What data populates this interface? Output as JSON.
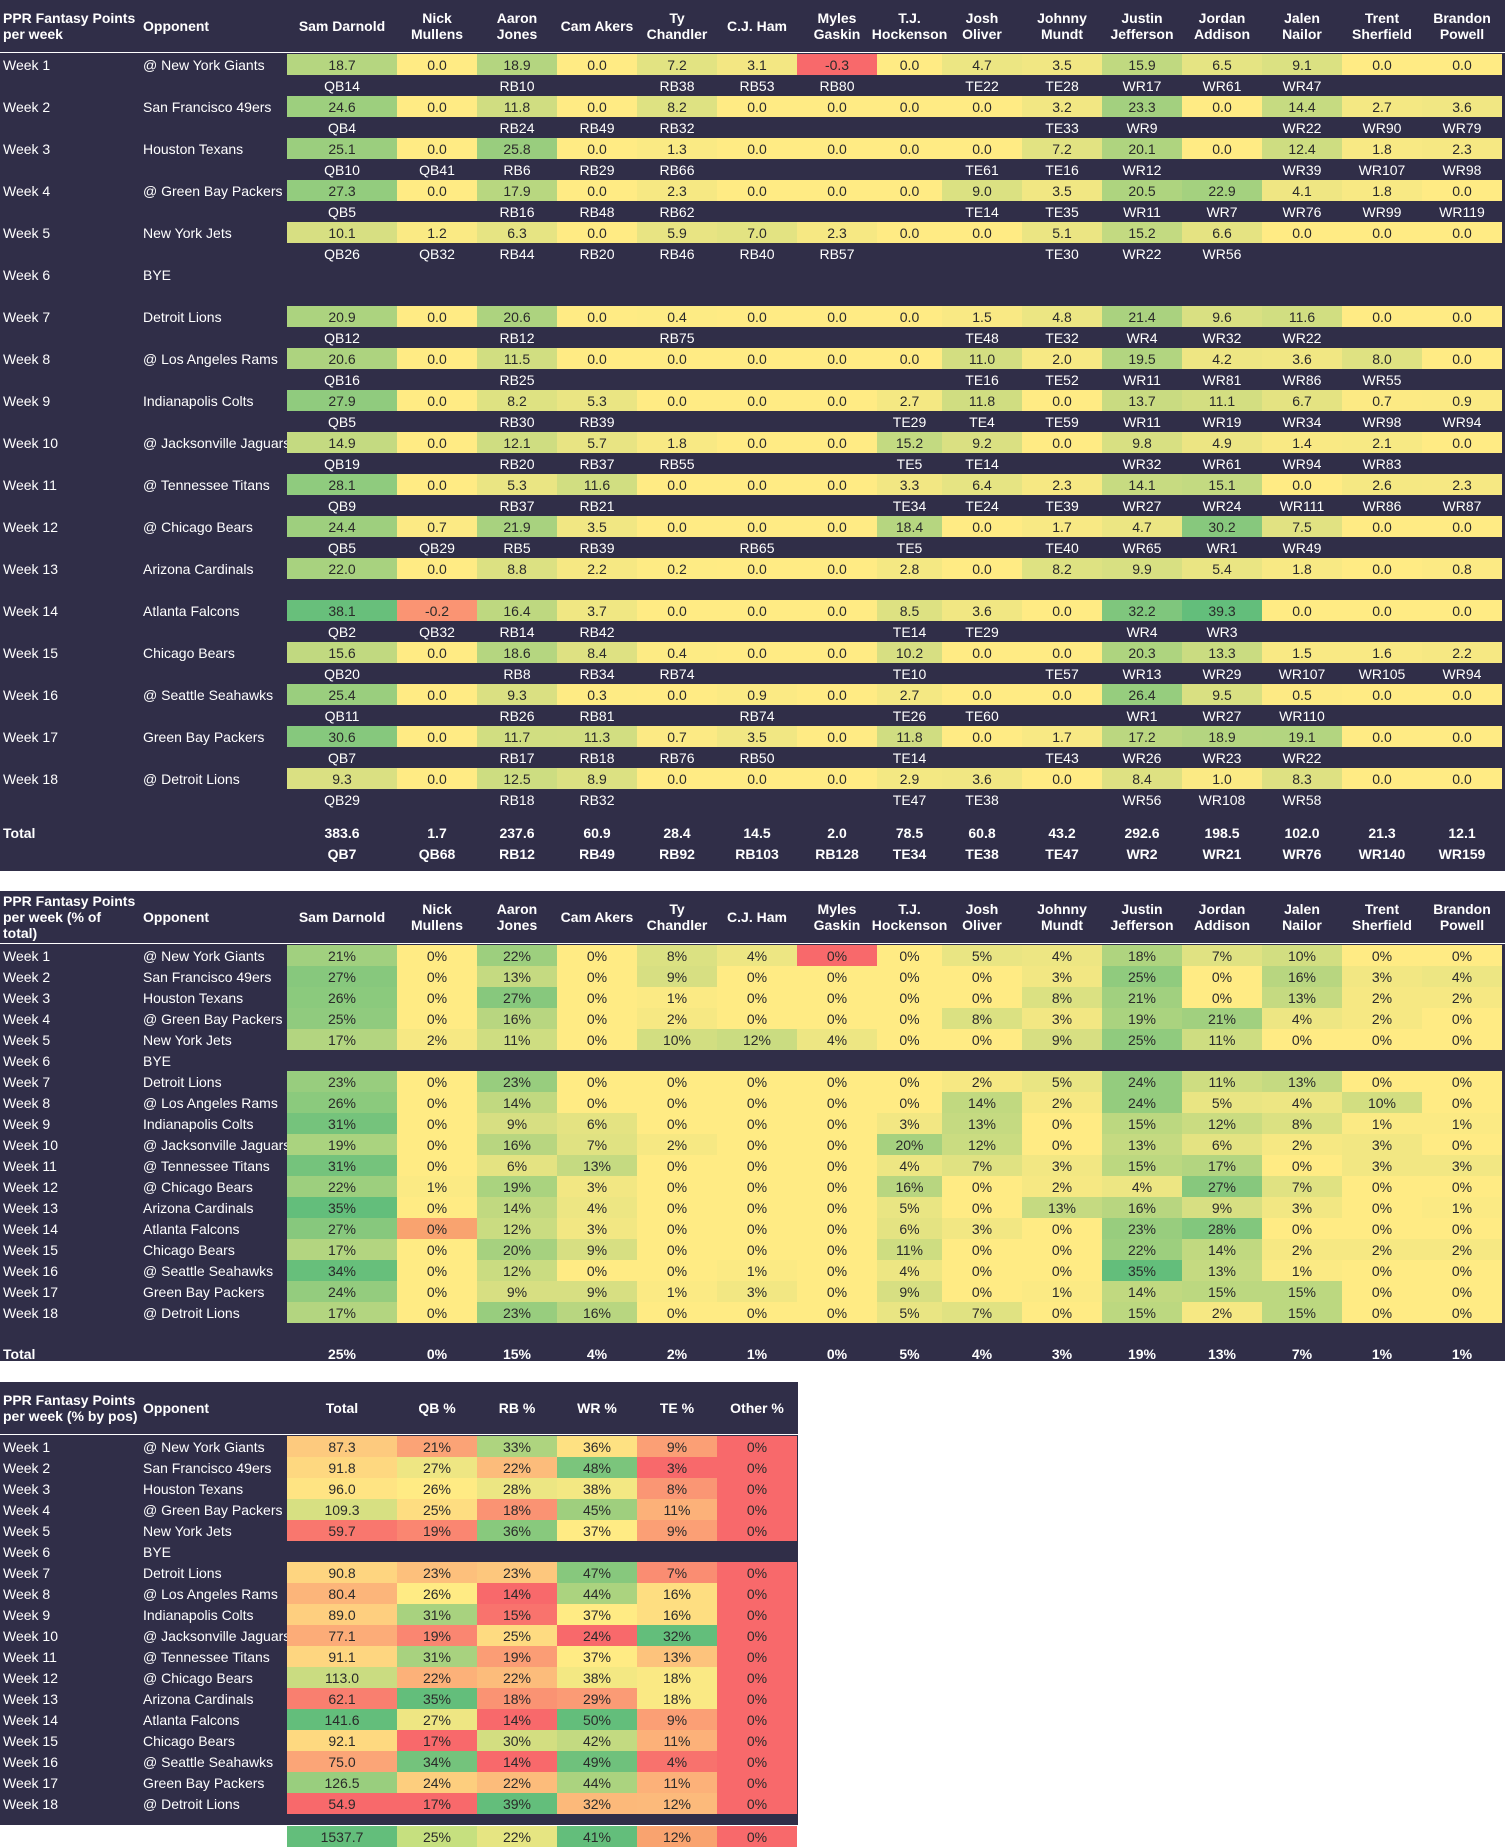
{
  "players": [
    "Sam Darnold",
    "Nick Mullens",
    "Aaron Jones",
    "Cam Akers",
    "Ty Chandler",
    "C.J. Ham",
    "Myles Gaskin",
    "T.J. Hockenson",
    "Josh Oliver",
    "Johnny Mundt",
    "Justin Jefferson",
    "Jordan Addison",
    "Jalen Nailor",
    "Trent Sherfield",
    "Brandon Powell"
  ],
  "weeks": [
    {
      "week": "Week 1",
      "opp": "@ New York Giants"
    },
    {
      "week": "Week 2",
      "opp": "San Francisco 49ers"
    },
    {
      "week": "Week 3",
      "opp": "Houston Texans"
    },
    {
      "week": "Week 4",
      "opp": "@ Green Bay Packers"
    },
    {
      "week": "Week 5",
      "opp": "New York Jets"
    },
    {
      "week": "Week 6",
      "opp": "BYE"
    },
    {
      "week": "Week 7",
      "opp": "Detroit Lions"
    },
    {
      "week": "Week 8",
      "opp": "@ Los Angeles Rams"
    },
    {
      "week": "Week 9",
      "opp": "Indianapolis Colts"
    },
    {
      "week": "Week 10",
      "opp": "@ Jacksonville Jaguars"
    },
    {
      "week": "Week 11",
      "opp": "@ Tennessee Titans"
    },
    {
      "week": "Week 12",
      "opp": "@ Chicago Bears"
    },
    {
      "week": "Week 13",
      "opp": "Arizona Cardinals"
    },
    {
      "week": "Week 14",
      "opp": "Atlanta Falcons"
    },
    {
      "week": "Week 15",
      "opp": "Chicago Bears"
    },
    {
      "week": "Week 16",
      "opp": "@ Seattle Seahawks"
    },
    {
      "week": "Week 17",
      "opp": "Green Bay Packers"
    },
    {
      "week": "Week 18",
      "opp": "@ Detroit Lions"
    }
  ],
  "section1": {
    "title": "PPR Fantasy Points per week",
    "opponent_header": "Opponent",
    "points": [
      [
        "18.7",
        "0.0",
        "18.9",
        "0.0",
        "7.2",
        "3.1",
        "-0.3",
        "0.0",
        "4.7",
        "3.5",
        "15.9",
        "6.5",
        "9.1",
        "0.0",
        "0.0"
      ],
      [
        "24.6",
        "0.0",
        "11.8",
        "0.0",
        "8.2",
        "0.0",
        "0.0",
        "0.0",
        "0.0",
        "3.2",
        "23.3",
        "0.0",
        "14.4",
        "2.7",
        "3.6"
      ],
      [
        "25.1",
        "0.0",
        "25.8",
        "0.0",
        "1.3",
        "0.0",
        "0.0",
        "0.0",
        "0.0",
        "7.2",
        "20.1",
        "0.0",
        "12.4",
        "1.8",
        "2.3"
      ],
      [
        "27.3",
        "0.0",
        "17.9",
        "0.0",
        "2.3",
        "0.0",
        "0.0",
        "0.0",
        "9.0",
        "3.5",
        "20.5",
        "22.9",
        "4.1",
        "1.8",
        "0.0"
      ],
      [
        "10.1",
        "1.2",
        "6.3",
        "0.0",
        "5.9",
        "7.0",
        "2.3",
        "0.0",
        "0.0",
        "5.1",
        "15.2",
        "6.6",
        "0.0",
        "0.0",
        "0.0"
      ],
      [],
      [
        "20.9",
        "0.0",
        "20.6",
        "0.0",
        "0.4",
        "0.0",
        "0.0",
        "0.0",
        "1.5",
        "4.8",
        "21.4",
        "9.6",
        "11.6",
        "0.0",
        "0.0"
      ],
      [
        "20.6",
        "0.0",
        "11.5",
        "0.0",
        "0.0",
        "0.0",
        "0.0",
        "0.0",
        "11.0",
        "2.0",
        "19.5",
        "4.2",
        "3.6",
        "8.0",
        "0.0"
      ],
      [
        "27.9",
        "0.0",
        "8.2",
        "5.3",
        "0.0",
        "0.0",
        "0.0",
        "2.7",
        "11.8",
        "0.0",
        "13.7",
        "11.1",
        "6.7",
        "0.7",
        "0.9"
      ],
      [
        "14.9",
        "0.0",
        "12.1",
        "5.7",
        "1.8",
        "0.0",
        "0.0",
        "15.2",
        "9.2",
        "0.0",
        "9.8",
        "4.9",
        "1.4",
        "2.1",
        "0.0"
      ],
      [
        "28.1",
        "0.0",
        "5.3",
        "11.6",
        "0.0",
        "0.0",
        "0.0",
        "3.3",
        "6.4",
        "2.3",
        "14.1",
        "15.1",
        "0.0",
        "2.6",
        "2.3"
      ],
      [
        "24.4",
        "0.7",
        "21.9",
        "3.5",
        "0.0",
        "0.0",
        "0.0",
        "18.4",
        "0.0",
        "1.7",
        "4.7",
        "30.2",
        "7.5",
        "0.0",
        "0.0"
      ],
      [
        "22.0",
        "0.0",
        "8.8",
        "2.2",
        "0.2",
        "0.0",
        "0.0",
        "2.8",
        "0.0",
        "8.2",
        "9.9",
        "5.4",
        "1.8",
        "0.0",
        "0.8"
      ],
      [
        "38.1",
        "-0.2",
        "16.4",
        "3.7",
        "0.0",
        "0.0",
        "0.0",
        "8.5",
        "3.6",
        "0.0",
        "32.2",
        "39.3",
        "0.0",
        "0.0",
        "0.0"
      ],
      [
        "15.6",
        "0.0",
        "18.6",
        "8.4",
        "0.4",
        "0.0",
        "0.0",
        "10.2",
        "0.0",
        "0.0",
        "20.3",
        "13.3",
        "1.5",
        "1.6",
        "2.2"
      ],
      [
        "25.4",
        "0.0",
        "9.3",
        "0.3",
        "0.0",
        "0.9",
        "0.0",
        "2.7",
        "0.0",
        "0.0",
        "26.4",
        "9.5",
        "0.5",
        "0.0",
        "0.0"
      ],
      [
        "30.6",
        "0.0",
        "11.7",
        "11.3",
        "0.7",
        "3.5",
        "0.0",
        "11.8",
        "0.0",
        "1.7",
        "17.2",
        "18.9",
        "19.1",
        "0.0",
        "0.0"
      ],
      [
        "9.3",
        "0.0",
        "12.5",
        "8.9",
        "0.0",
        "0.0",
        "0.0",
        "2.9",
        "3.6",
        "0.0",
        "8.4",
        "1.0",
        "8.3",
        "0.0",
        "0.0"
      ]
    ],
    "ranks": [
      [
        "QB14",
        "",
        "RB10",
        "",
        "RB38",
        "RB53",
        "RB80",
        "",
        "TE22",
        "TE28",
        "WR17",
        "WR61",
        "WR47",
        "",
        ""
      ],
      [
        "QB4",
        "",
        "RB24",
        "RB49",
        "RB32",
        "",
        "",
        "",
        "",
        "TE33",
        "WR9",
        "",
        "WR22",
        "WR90",
        "WR79"
      ],
      [
        "QB10",
        "QB41",
        "RB6",
        "RB29",
        "RB66",
        "",
        "",
        "",
        "TE61",
        "TE16",
        "WR12",
        "",
        "WR39",
        "WR107",
        "WR98"
      ],
      [
        "QB5",
        "",
        "RB16",
        "RB48",
        "RB62",
        "",
        "",
        "",
        "TE14",
        "TE35",
        "WR11",
        "WR7",
        "WR76",
        "WR99",
        "WR119"
      ],
      [
        "QB26",
        "QB32",
        "RB44",
        "RB20",
        "RB46",
        "RB40",
        "RB57",
        "",
        "",
        "TE30",
        "WR22",
        "WR56",
        "",
        "",
        ""
      ],
      [],
      [
        "QB12",
        "",
        "RB12",
        "",
        "RB75",
        "",
        "",
        "",
        "TE48",
        "TE32",
        "WR4",
        "WR32",
        "WR22",
        "",
        ""
      ],
      [
        "QB16",
        "",
        "RB25",
        "",
        "",
        "",
        "",
        "",
        "TE16",
        "TE52",
        "WR11",
        "WR81",
        "WR86",
        "WR55",
        ""
      ],
      [
        "QB5",
        "",
        "RB30",
        "RB39",
        "",
        "",
        "",
        "TE29",
        "TE4",
        "TE59",
        "WR11",
        "WR19",
        "WR34",
        "WR98",
        "WR94"
      ],
      [
        "QB19",
        "",
        "RB20",
        "RB37",
        "RB55",
        "",
        "",
        "TE5",
        "TE14",
        "",
        "WR32",
        "WR61",
        "WR94",
        "WR83",
        ""
      ],
      [
        "QB9",
        "",
        "RB37",
        "RB21",
        "",
        "",
        "",
        "TE34",
        "TE24",
        "TE39",
        "WR27",
        "WR24",
        "WR111",
        "WR86",
        "WR87"
      ],
      [
        "QB5",
        "QB29",
        "RB5",
        "RB39",
        "",
        "RB65",
        "",
        "TE5",
        "",
        "TE40",
        "WR65",
        "WR1",
        "WR49",
        "",
        ""
      ],
      [
        "",
        "",
        "",
        "",
        "",
        "",
        "",
        "",
        "",
        "",
        "",
        "",
        "",
        "",
        ""
      ],
      [
        "QB2",
        "QB32",
        "RB14",
        "RB42",
        "",
        "",
        "",
        "TE14",
        "TE29",
        "",
        "WR4",
        "WR3",
        "",
        "",
        ""
      ],
      [
        "QB20",
        "",
        "RB8",
        "RB34",
        "RB74",
        "",
        "",
        "TE10",
        "",
        "TE57",
        "WR13",
        "WR29",
        "WR107",
        "WR105",
        "WR94"
      ],
      [
        "QB11",
        "",
        "RB26",
        "RB81",
        "",
        "RB74",
        "",
        "TE26",
        "TE60",
        "",
        "WR1",
        "WR27",
        "WR110",
        "",
        ""
      ],
      [
        "QB7",
        "",
        "RB17",
        "RB18",
        "RB76",
        "RB50",
        "",
        "TE14",
        "",
        "TE43",
        "WR26",
        "WR23",
        "WR22",
        "",
        ""
      ],
      [
        "QB29",
        "",
        "RB18",
        "RB32",
        "",
        "",
        "",
        "TE47",
        "TE38",
        "",
        "WR56",
        "WR108",
        "WR58",
        "",
        ""
      ]
    ],
    "total_label": "Total",
    "totals": [
      "383.6",
      "1.7",
      "237.6",
      "60.9",
      "28.4",
      "14.5",
      "2.0",
      "78.5",
      "60.8",
      "43.2",
      "292.6",
      "198.5",
      "102.0",
      "21.3",
      "12.1"
    ],
    "total_ranks": [
      "QB7",
      "QB68",
      "RB12",
      "RB49",
      "RB92",
      "RB103",
      "RB128",
      "TE34",
      "TE38",
      "TE47",
      "WR2",
      "WR21",
      "WR76",
      "WR140",
      "WR159"
    ]
  },
  "section2": {
    "title": "PPR Fantasy Points per week (% of total)",
    "opponent_header": "Opponent",
    "pct": [
      [
        "21%",
        "0%",
        "22%",
        "0%",
        "8%",
        "4%",
        "0%",
        "0%",
        "5%",
        "4%",
        "18%",
        "7%",
        "10%",
        "0%",
        "0%"
      ],
      [
        "27%",
        "0%",
        "13%",
        "0%",
        "9%",
        "0%",
        "0%",
        "0%",
        "0%",
        "3%",
        "25%",
        "0%",
        "16%",
        "3%",
        "4%"
      ],
      [
        "26%",
        "0%",
        "27%",
        "0%",
        "1%",
        "0%",
        "0%",
        "0%",
        "0%",
        "8%",
        "21%",
        "0%",
        "13%",
        "2%",
        "2%"
      ],
      [
        "25%",
        "0%",
        "16%",
        "0%",
        "2%",
        "0%",
        "0%",
        "0%",
        "8%",
        "3%",
        "19%",
        "21%",
        "4%",
        "2%",
        "0%"
      ],
      [
        "17%",
        "2%",
        "11%",
        "0%",
        "10%",
        "12%",
        "4%",
        "0%",
        "0%",
        "9%",
        "25%",
        "11%",
        "0%",
        "0%",
        "0%"
      ],
      [],
      [
        "23%",
        "0%",
        "23%",
        "0%",
        "0%",
        "0%",
        "0%",
        "0%",
        "2%",
        "5%",
        "24%",
        "11%",
        "13%",
        "0%",
        "0%"
      ],
      [
        "26%",
        "0%",
        "14%",
        "0%",
        "0%",
        "0%",
        "0%",
        "0%",
        "14%",
        "2%",
        "24%",
        "5%",
        "4%",
        "10%",
        "0%"
      ],
      [
        "31%",
        "0%",
        "9%",
        "6%",
        "0%",
        "0%",
        "0%",
        "3%",
        "13%",
        "0%",
        "15%",
        "12%",
        "8%",
        "1%",
        "1%"
      ],
      [
        "19%",
        "0%",
        "16%",
        "7%",
        "2%",
        "0%",
        "0%",
        "20%",
        "12%",
        "0%",
        "13%",
        "6%",
        "2%",
        "3%",
        "0%"
      ],
      [
        "31%",
        "0%",
        "6%",
        "13%",
        "0%",
        "0%",
        "0%",
        "4%",
        "7%",
        "3%",
        "15%",
        "17%",
        "0%",
        "3%",
        "3%"
      ],
      [
        "22%",
        "1%",
        "19%",
        "3%",
        "0%",
        "0%",
        "0%",
        "16%",
        "0%",
        "2%",
        "4%",
        "27%",
        "7%",
        "0%",
        "0%"
      ],
      [
        "35%",
        "0%",
        "14%",
        "4%",
        "0%",
        "0%",
        "0%",
        "5%",
        "0%",
        "13%",
        "16%",
        "9%",
        "3%",
        "0%",
        "1%"
      ],
      [
        "27%",
        "0%",
        "12%",
        "3%",
        "0%",
        "0%",
        "0%",
        "6%",
        "3%",
        "0%",
        "23%",
        "28%",
        "0%",
        "0%",
        "0%"
      ],
      [
        "17%",
        "0%",
        "20%",
        "9%",
        "0%",
        "0%",
        "0%",
        "11%",
        "0%",
        "0%",
        "22%",
        "14%",
        "2%",
        "2%",
        "2%"
      ],
      [
        "34%",
        "0%",
        "12%",
        "0%",
        "0%",
        "1%",
        "0%",
        "4%",
        "0%",
        "0%",
        "35%",
        "13%",
        "1%",
        "0%",
        "0%"
      ],
      [
        "24%",
        "0%",
        "9%",
        "9%",
        "1%",
        "3%",
        "0%",
        "9%",
        "0%",
        "1%",
        "14%",
        "15%",
        "15%",
        "0%",
        "0%"
      ],
      [
        "17%",
        "0%",
        "23%",
        "16%",
        "0%",
        "0%",
        "0%",
        "5%",
        "7%",
        "0%",
        "15%",
        "2%",
        "15%",
        "0%",
        "0%"
      ]
    ],
    "total_label": "Total",
    "totals": [
      "25%",
      "0%",
      "15%",
      "4%",
      "2%",
      "1%",
      "0%",
      "5%",
      "4%",
      "3%",
      "19%",
      "13%",
      "7%",
      "1%",
      "1%"
    ]
  },
  "section3": {
    "title": "PPR Fantasy Points per week (% by pos)",
    "headers": [
      "Opponent",
      "Total",
      "QB %",
      "RB %",
      "WR %",
      "TE %",
      "Other %"
    ],
    "rows": [
      [
        "87.3",
        "21%",
        "33%",
        "36%",
        "9%",
        "0%"
      ],
      [
        "91.8",
        "27%",
        "22%",
        "48%",
        "3%",
        "0%"
      ],
      [
        "96.0",
        "26%",
        "28%",
        "38%",
        "8%",
        "0%"
      ],
      [
        "109.3",
        "25%",
        "18%",
        "45%",
        "11%",
        "0%"
      ],
      [
        "59.7",
        "19%",
        "36%",
        "37%",
        "9%",
        "0%"
      ],
      [],
      [
        "90.8",
        "23%",
        "23%",
        "47%",
        "7%",
        "0%"
      ],
      [
        "80.4",
        "26%",
        "14%",
        "44%",
        "16%",
        "0%"
      ],
      [
        "89.0",
        "31%",
        "15%",
        "37%",
        "16%",
        "0%"
      ],
      [
        "77.1",
        "19%",
        "25%",
        "24%",
        "32%",
        "0%"
      ],
      [
        "91.1",
        "31%",
        "19%",
        "37%",
        "13%",
        "0%"
      ],
      [
        "113.0",
        "22%",
        "22%",
        "38%",
        "18%",
        "0%"
      ],
      [
        "62.1",
        "35%",
        "18%",
        "29%",
        "18%",
        "0%"
      ],
      [
        "141.6",
        "27%",
        "14%",
        "50%",
        "9%",
        "0%"
      ],
      [
        "92.1",
        "17%",
        "30%",
        "42%",
        "11%",
        "0%"
      ],
      [
        "75.0",
        "34%",
        "14%",
        "49%",
        "4%",
        "0%"
      ],
      [
        "126.5",
        "24%",
        "22%",
        "44%",
        "11%",
        "0%"
      ],
      [
        "54.9",
        "17%",
        "39%",
        "32%",
        "12%",
        "0%"
      ]
    ],
    "total_label": "Total",
    "totals": [
      "1537.7",
      "25%",
      "22%",
      "41%",
      "12%",
      "0%"
    ]
  },
  "colors": {
    "background": "#302e48",
    "low": "#f8696b",
    "mid": "#ffeb84",
    "high": "#63be7b"
  }
}
